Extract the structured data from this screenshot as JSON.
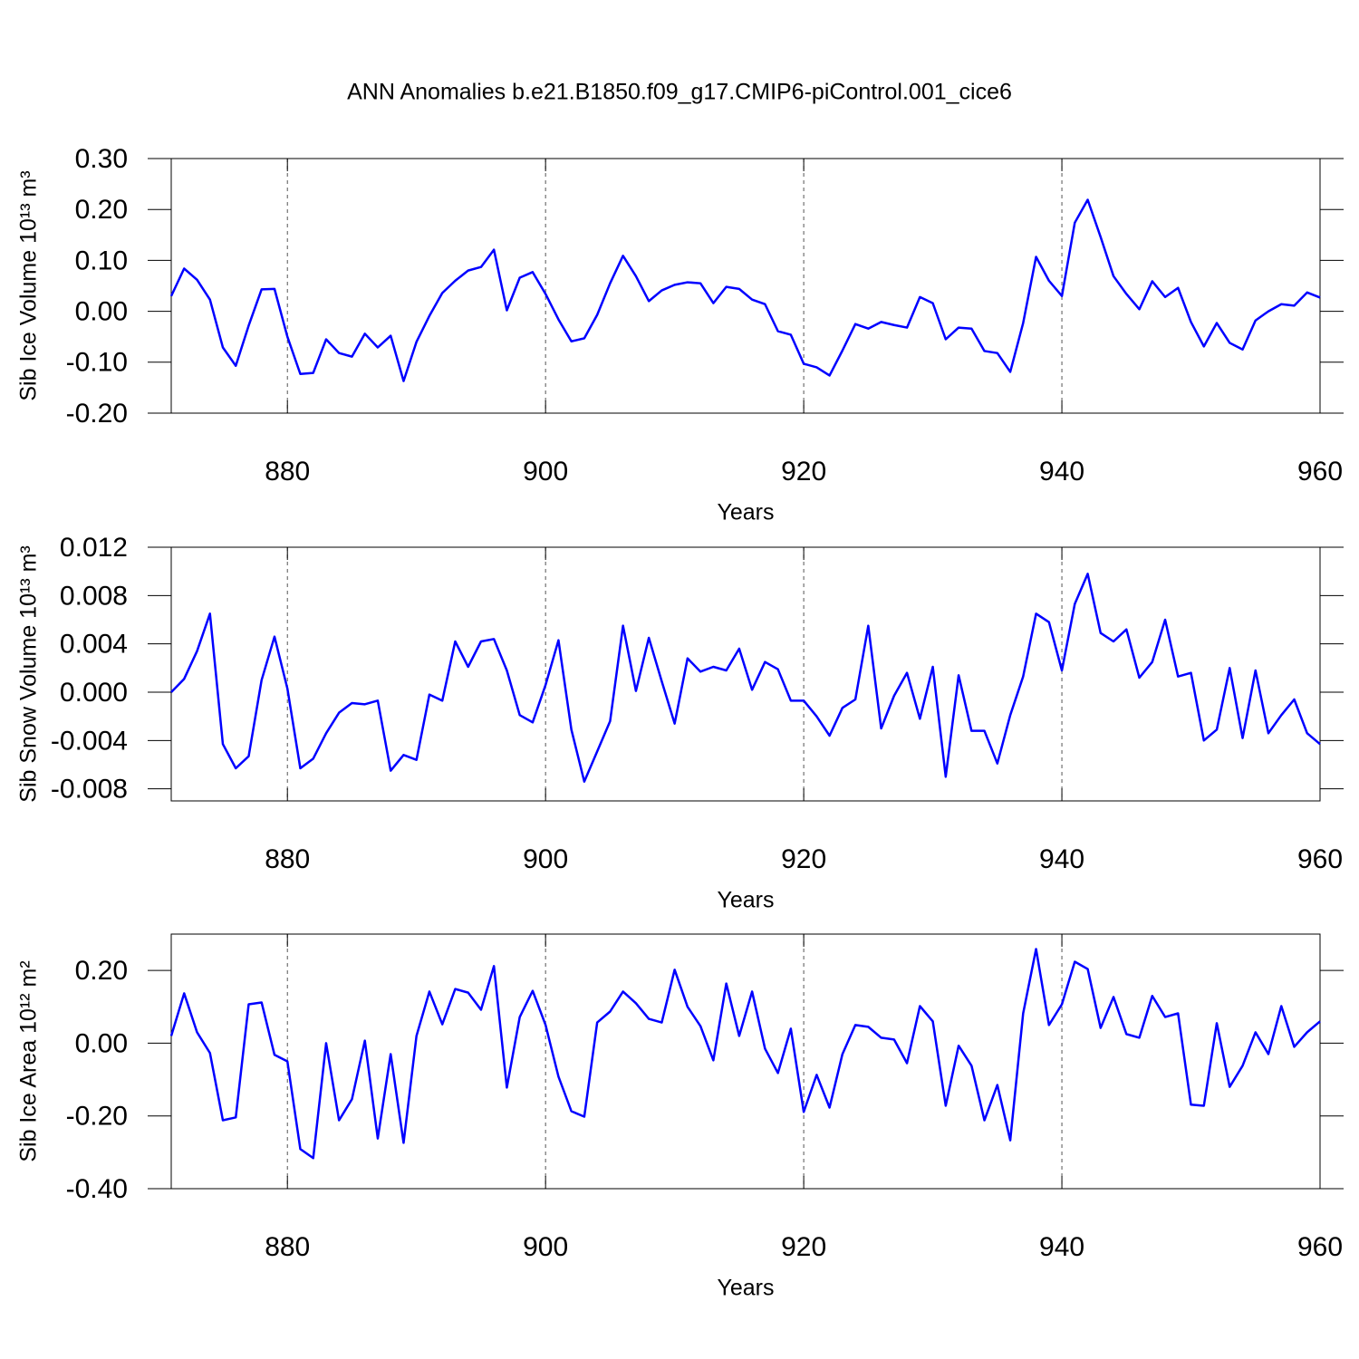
{
  "chart_data": [
    {
      "type": "line",
      "title": "ANN Anomalies b.e21.B1850.f09_g17.CMIP6-piControl.001_cice6",
      "xlabel": "Years",
      "ylabel": "Sib Ice Volume 10¹³ m³",
      "grid": true,
      "x": [
        871,
        872,
        873,
        874,
        875,
        876,
        877,
        878,
        879,
        880,
        881,
        882,
        883,
        884,
        885,
        886,
        887,
        888,
        889,
        890,
        891,
        892,
        893,
        894,
        895,
        896,
        897,
        898,
        899,
        900,
        901,
        902,
        903,
        904,
        905,
        906,
        907,
        908,
        909,
        910,
        911,
        912,
        913,
        914,
        915,
        916,
        917,
        918,
        919,
        920,
        921,
        922,
        923,
        924,
        925,
        926,
        927,
        928,
        929,
        930,
        931,
        932,
        933,
        934,
        935,
        936,
        937,
        938,
        939,
        940,
        941,
        942,
        943,
        944,
        945,
        946,
        947,
        948,
        949,
        950,
        951,
        952,
        953,
        954,
        955,
        956,
        957,
        958,
        959,
        960
      ],
      "series": [
        {
          "color": "#0000ff",
          "values": [
            0.03,
            0.084,
            0.062,
            0.023,
            -0.071,
            -0.107,
            -0.028,
            0.043,
            0.044,
            -0.05,
            -0.123,
            -0.121,
            -0.055,
            -0.082,
            -0.089,
            -0.044,
            -0.071,
            -0.048,
            -0.137,
            -0.06,
            -0.009,
            0.036,
            0.06,
            0.08,
            0.087,
            0.121,
            0.002,
            0.066,
            0.077,
            0.034,
            -0.016,
            -0.059,
            -0.053,
            -0.007,
            0.055,
            0.109,
            0.069,
            0.02,
            0.041,
            0.052,
            0.057,
            0.055,
            0.016,
            0.048,
            0.044,
            0.023,
            0.014,
            -0.039,
            -0.046,
            -0.103,
            -0.11,
            -0.126,
            -0.077,
            -0.025,
            -0.034,
            -0.021,
            -0.027,
            -0.032,
            0.028,
            0.016,
            -0.055,
            -0.032,
            -0.034,
            -0.078,
            -0.082,
            -0.119,
            -0.023,
            0.107,
            0.06,
            0.03,
            0.174,
            0.219,
            0.146,
            0.069,
            0.034,
            0.004,
            0.059,
            0.028,
            0.046,
            -0.021,
            -0.069,
            -0.023,
            -0.062,
            -0.075,
            -0.018,
            0,
            0.014,
            0.011,
            0.037,
            0.027
          ]
        }
      ],
      "xlim": [
        871,
        960
      ],
      "xticks": [
        880,
        900,
        920,
        940,
        960
      ],
      "ylim": [
        -0.2,
        0.3
      ],
      "yticks": [
        {
          "value": -0.2,
          "label": "-0.20"
        },
        {
          "value": -0.1,
          "label": "-0.10"
        },
        {
          "value": 0,
          "label": "0.00"
        },
        {
          "value": 0.1,
          "label": "0.10"
        },
        {
          "value": 0.2,
          "label": "0.20"
        },
        {
          "value": 0.3,
          "label": "0.30"
        }
      ]
    },
    {
      "type": "line",
      "xlabel": "Years",
      "ylabel": "Sib Snow Volume 10¹³ m³",
      "grid": true,
      "x": [
        871,
        872,
        873,
        874,
        875,
        876,
        877,
        878,
        879,
        880,
        881,
        882,
        883,
        884,
        885,
        886,
        887,
        888,
        889,
        890,
        891,
        892,
        893,
        894,
        895,
        896,
        897,
        898,
        899,
        900,
        901,
        902,
        903,
        904,
        905,
        906,
        907,
        908,
        909,
        910,
        911,
        912,
        913,
        914,
        915,
        916,
        917,
        918,
        919,
        920,
        921,
        922,
        923,
        924,
        925,
        926,
        927,
        928,
        929,
        930,
        931,
        932,
        933,
        934,
        935,
        936,
        937,
        938,
        939,
        940,
        941,
        942,
        943,
        944,
        945,
        946,
        947,
        948,
        949,
        950,
        951,
        952,
        953,
        954,
        955,
        956,
        957,
        958,
        959,
        960
      ],
      "series": [
        {
          "color": "#0000ff",
          "values": [
            0,
            0.0011,
            0.0034,
            0.0065,
            -0.0043,
            -0.0063,
            -0.0053,
            0.001,
            0.0046,
            0.0003,
            -0.0063,
            -0.0055,
            -0.0034,
            -0.0017,
            -0.0009,
            -0.001,
            -0.0007,
            -0.0065,
            -0.0052,
            -0.0056,
            -0.0002,
            -0.0007,
            0.0042,
            0.0021,
            0.0042,
            0.0044,
            0.0018,
            -0.0019,
            -0.0025,
            0.0006,
            0.0043,
            -0.0031,
            -0.0074,
            -0.0049,
            -0.0024,
            0.0055,
            0.0001,
            0.0045,
            0.0009,
            -0.0026,
            0.0028,
            0.0017,
            0.0021,
            0.0018,
            0.0036,
            0.0002,
            0.0025,
            0.0019,
            -0.0007,
            -0.0007,
            -0.002,
            -0.0036,
            -0.0013,
            -0.0006,
            0.0055,
            -0.003,
            -0.0003,
            0.0016,
            -0.0022,
            0.0021,
            -0.007,
            0.0014,
            -0.0032,
            -0.0032,
            -0.0059,
            -0.0019,
            0.0013,
            0.0065,
            0.0058,
            0.0018,
            0.0073,
            0.0098,
            0.0049,
            0.0042,
            0.0052,
            0.0012,
            0.0025,
            0.006,
            0.0013,
            0.0016,
            -0.004,
            -0.0031,
            0.002,
            -0.0038,
            0.0018,
            -0.0034,
            -0.0019,
            -0.0006,
            -0.0034,
            -0.0043
          ]
        }
      ],
      "xlim": [
        871,
        960
      ],
      "xticks": [
        880,
        900,
        920,
        940,
        960
      ],
      "ylim": [
        -0.009,
        0.012
      ],
      "yticks": [
        {
          "value": -0.008,
          "label": "-0.008"
        },
        {
          "value": -0.004,
          "label": "-0.004"
        },
        {
          "value": 0,
          "label": "0.000"
        },
        {
          "value": 0.004,
          "label": "0.004"
        },
        {
          "value": 0.008,
          "label": "0.008"
        },
        {
          "value": 0.012,
          "label": "0.012"
        }
      ]
    },
    {
      "type": "line",
      "xlabel": "Years",
      "ylabel": "Sib Ice Area 10¹² m²",
      "grid": true,
      "x": [
        871,
        872,
        873,
        874,
        875,
        876,
        877,
        878,
        879,
        880,
        881,
        882,
        883,
        884,
        885,
        886,
        887,
        888,
        889,
        890,
        891,
        892,
        893,
        894,
        895,
        896,
        897,
        898,
        899,
        900,
        901,
        902,
        903,
        904,
        905,
        906,
        907,
        908,
        909,
        910,
        911,
        912,
        913,
        914,
        915,
        916,
        917,
        918,
        919,
        920,
        921,
        922,
        923,
        924,
        925,
        926,
        927,
        928,
        929,
        930,
        931,
        932,
        933,
        934,
        935,
        936,
        937,
        938,
        939,
        940,
        941,
        942,
        943,
        944,
        945,
        946,
        947,
        948,
        949,
        950,
        951,
        952,
        953,
        954,
        955,
        956,
        957,
        958,
        959,
        960
      ],
      "series": [
        {
          "color": "#0000ff",
          "values": [
            0.02,
            0.137,
            0.03,
            -0.027,
            -0.212,
            -0.204,
            0.107,
            0.112,
            -0.032,
            -0.05,
            -0.291,
            -0.316,
            0,
            -0.212,
            -0.154,
            0.007,
            -0.262,
            -0.03,
            -0.274,
            0.02,
            0.142,
            0.052,
            0.149,
            0.139,
            0.092,
            0.212,
            -0.122,
            0.072,
            0.144,
            0.05,
            -0.092,
            -0.187,
            -0.202,
            0.057,
            0.087,
            0.142,
            0.11,
            0.067,
            0.057,
            0.202,
            0.1,
            0.047,
            -0.047,
            0.164,
            0.02,
            0.142,
            -0.015,
            -0.082,
            0.04,
            -0.189,
            -0.087,
            -0.177,
            -0.03,
            0.05,
            0.045,
            0.015,
            0.01,
            -0.055,
            0.102,
            0.06,
            -0.172,
            -0.007,
            -0.062,
            -0.212,
            -0.115,
            -0.267,
            0.082,
            0.259,
            0.05,
            0.107,
            0.224,
            0.204,
            0.042,
            0.127,
            0.025,
            0.015,
            0.13,
            0.072,
            0.082,
            -0.169,
            -0.172,
            0.055,
            -0.12,
            -0.062,
            0.03,
            -0.03,
            0.102,
            -0.01,
            0.03,
            0.06
          ]
        }
      ],
      "xlim": [
        871,
        960
      ],
      "xticks": [
        880,
        900,
        920,
        940,
        960
      ],
      "ylim": [
        -0.4,
        0.3
      ],
      "yticks": [
        {
          "value": -0.4,
          "label": "-0.40"
        },
        {
          "value": -0.2,
          "label": "-0.20"
        },
        {
          "value": 0,
          "label": "0.00"
        },
        {
          "value": 0.2,
          "label": "0.20"
        }
      ]
    }
  ]
}
